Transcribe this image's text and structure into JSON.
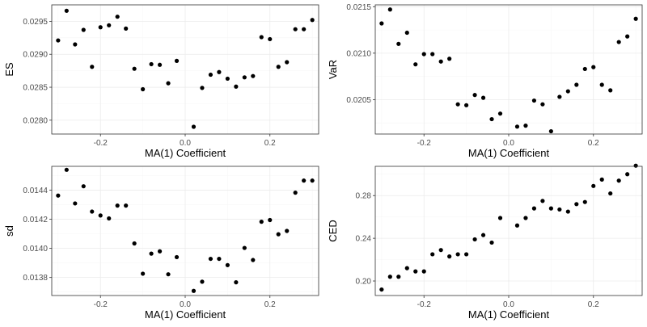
{
  "chart_data": [
    {
      "type": "scatter",
      "title": "",
      "xlabel": "MA(1) Coefficient",
      "ylabel": "ES",
      "xlim": [
        -0.315,
        0.315
      ],
      "ylim": [
        0.02779,
        0.02975
      ],
      "xticks": [
        -0.2,
        0.0,
        0.2
      ],
      "xtick_labels": [
        "-0.2",
        "0.0",
        "0.2"
      ],
      "yticks": [
        0.028,
        0.0285,
        0.029,
        0.0295
      ],
      "ytick_labels": [
        "0.0280",
        "0.0285",
        "0.0290",
        "0.0295"
      ],
      "grid": true,
      "series": [
        {
          "x": [
            -0.3,
            -0.28,
            -0.26,
            -0.24,
            -0.22,
            -0.2,
            -0.18,
            -0.16,
            -0.14,
            -0.12,
            -0.1,
            -0.08,
            -0.06,
            -0.04,
            -0.02,
            0.02,
            0.04,
            0.06,
            0.08,
            0.1,
            0.12,
            0.14,
            0.16,
            0.18,
            0.2,
            0.22,
            0.24,
            0.26,
            0.28,
            0.3
          ],
          "y": [
            0.02921,
            0.02966,
            0.02915,
            0.02937,
            0.02881,
            0.02941,
            0.02944,
            0.02957,
            0.02939,
            0.02878,
            0.02847,
            0.02885,
            0.02884,
            0.02856,
            0.0289,
            0.0279,
            0.02849,
            0.02869,
            0.02873,
            0.02863,
            0.02851,
            0.02865,
            0.02867,
            0.02926,
            0.02923,
            0.02881,
            0.02888,
            0.02938,
            0.02938,
            0.02952
          ]
        }
      ]
    },
    {
      "type": "scatter",
      "title": "",
      "xlabel": "MA(1) Coefficient",
      "ylabel": "VaR",
      "xlim": [
        -0.315,
        0.315
      ],
      "ylim": [
        0.02013,
        0.02152
      ],
      "xticks": [
        -0.2,
        0.0,
        0.2
      ],
      "xtick_labels": [
        "-0.2",
        "0.0",
        "0.2"
      ],
      "yticks": [
        0.0205,
        0.021,
        0.0215
      ],
      "ytick_labels": [
        "0.0205",
        "0.0210",
        "0.0215"
      ],
      "grid": true,
      "series": [
        {
          "x": [
            -0.3,
            -0.28,
            -0.26,
            -0.24,
            -0.22,
            -0.2,
            -0.18,
            -0.16,
            -0.14,
            -0.12,
            -0.1,
            -0.08,
            -0.06,
            -0.04,
            -0.02,
            0.02,
            0.04,
            0.06,
            0.08,
            0.1,
            0.12,
            0.14,
            0.16,
            0.18,
            0.2,
            0.22,
            0.24,
            0.26,
            0.28,
            0.3
          ],
          "y": [
            0.02132,
            0.02147,
            0.0211,
            0.02122,
            0.02088,
            0.02099,
            0.02099,
            0.02091,
            0.02094,
            0.02045,
            0.02044,
            0.02055,
            0.02052,
            0.02029,
            0.02035,
            0.02021,
            0.02022,
            0.02049,
            0.02045,
            0.02016,
            0.02053,
            0.02059,
            0.02066,
            0.02083,
            0.02085,
            0.02066,
            0.0206,
            0.02112,
            0.02118,
            0.02137
          ]
        }
      ]
    },
    {
      "type": "scatter",
      "title": "",
      "xlabel": "MA(1) Coefficient",
      "ylabel": "sd",
      "xlim": [
        -0.315,
        0.315
      ],
      "ylim": [
        0.013676,
        0.014564
      ],
      "xticks": [
        -0.2,
        0.0,
        0.2
      ],
      "xtick_labels": [
        "-0.2",
        "0.0",
        "0.2"
      ],
      "yticks": [
        0.0138,
        0.014,
        0.0142,
        0.0144
      ],
      "ytick_labels": [
        "0.0138",
        "0.0140",
        "0.0142",
        "0.0144"
      ],
      "grid": true,
      "series": [
        {
          "x": [
            -0.3,
            -0.28,
            -0.26,
            -0.24,
            -0.22,
            -0.2,
            -0.18,
            -0.16,
            -0.14,
            -0.12,
            -0.1,
            -0.08,
            -0.06,
            -0.04,
            -0.02,
            0.02,
            0.04,
            0.06,
            0.08,
            0.1,
            0.12,
            0.14,
            0.16,
            0.18,
            0.2,
            0.22,
            0.24,
            0.26,
            0.28,
            0.3
          ],
          "y": [
            0.014363,
            0.01454,
            0.014309,
            0.014427,
            0.014253,
            0.014226,
            0.014206,
            0.014294,
            0.014294,
            0.014034,
            0.013826,
            0.013964,
            0.01398,
            0.013822,
            0.01394,
            0.013708,
            0.013771,
            0.013928,
            0.013928,
            0.013885,
            0.013767,
            0.014003,
            0.01392,
            0.014183,
            0.014195,
            0.014097,
            0.01412,
            0.014383,
            0.014466,
            0.014466
          ]
        }
      ]
    },
    {
      "type": "scatter",
      "title": "",
      "xlabel": "MA(1) Coefficient",
      "ylabel": "CED",
      "xlim": [
        -0.315,
        0.315
      ],
      "ylim": [
        0.1864,
        0.3074
      ],
      "xticks": [
        -0.2,
        0.0,
        0.2
      ],
      "xtick_labels": [
        "-0.2",
        "0.0",
        "0.2"
      ],
      "yticks": [
        0.2,
        0.24,
        0.28
      ],
      "ytick_labels": [
        "0.20",
        "0.24",
        "0.28"
      ],
      "grid": true,
      "series": [
        {
          "x": [
            -0.3,
            -0.28,
            -0.26,
            -0.24,
            -0.22,
            -0.2,
            -0.18,
            -0.16,
            -0.14,
            -0.12,
            -0.1,
            -0.08,
            -0.06,
            -0.04,
            -0.02,
            0.02,
            0.04,
            0.06,
            0.08,
            0.1,
            0.12,
            0.14,
            0.16,
            0.18,
            0.2,
            0.22,
            0.24,
            0.26,
            0.28,
            0.3
          ],
          "y": [
            0.192,
            0.204,
            0.204,
            0.212,
            0.209,
            0.209,
            0.225,
            0.229,
            0.223,
            0.225,
            0.225,
            0.239,
            0.243,
            0.236,
            0.259,
            0.252,
            0.259,
            0.268,
            0.275,
            0.268,
            0.267,
            0.265,
            0.272,
            0.274,
            0.289,
            0.295,
            0.282,
            0.294,
            0.3,
            0.308
          ]
        }
      ]
    }
  ]
}
